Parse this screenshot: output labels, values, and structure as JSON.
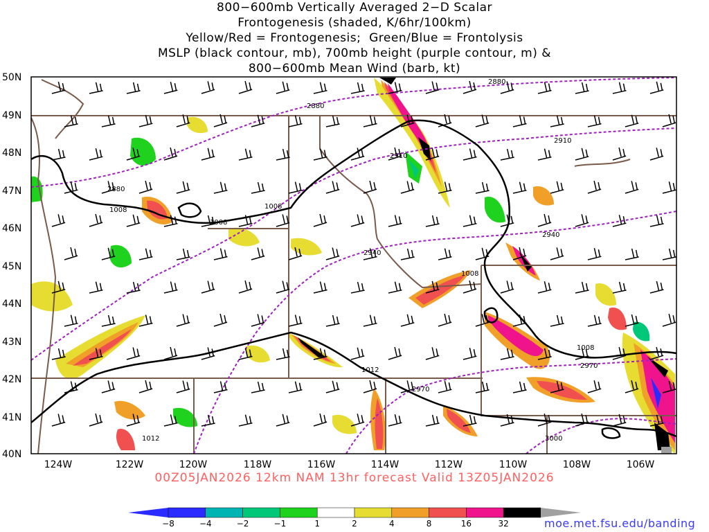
{
  "title_lines": [
    "800−600mb Vertically Averaged 2−D Scalar",
    "Frontogenesis (shaded, K/6hr/100km)",
    "Yellow/Red = Frontogenesis;  Green/Blue = Frontolysis",
    "MSLP (black contour, mb), 700mb height (purple contour, m) &",
    "800−600mb Mean Wind (barb, kt)"
  ],
  "valid_text": "00Z05JAN2026 12km NAM 13hr forecast Valid 13Z05JAN2026",
  "credit": "moe.met.fsu.edu/banding",
  "lat_labels": [
    "50N",
    "49N",
    "48N",
    "47N",
    "46N",
    "45N",
    "44N",
    "43N",
    "42N",
    "41N",
    "40N"
  ],
  "lon_labels": [
    "124W",
    "122W",
    "120W",
    "118W",
    "116W",
    "114W",
    "112W",
    "110W",
    "108W",
    "106W"
  ],
  "colorbar": {
    "labels": [
      "−8",
      "−4",
      "−2",
      "−1",
      "1",
      "2",
      "4",
      "8",
      "16",
      "32"
    ],
    "colors": [
      "#2b2bff",
      "#00b4b4",
      "#00c878",
      "#1ed21e",
      "#ffffff",
      "#e6dc32",
      "#f0a028",
      "#f05050",
      "#f0148c",
      "#000000"
    ],
    "end_low": "#2b2bff",
    "end_high": "#a0a0a0"
  },
  "contour_labels": {
    "mslp": [
      "1008",
      "1008",
      "1008",
      "1008",
      "1008",
      "1012",
      "1012"
    ],
    "height": [
      "2880",
      "2880",
      "2880",
      "2910",
      "2910",
      "2940",
      "2940",
      "2970",
      "2970",
      "3000"
    ]
  }
}
